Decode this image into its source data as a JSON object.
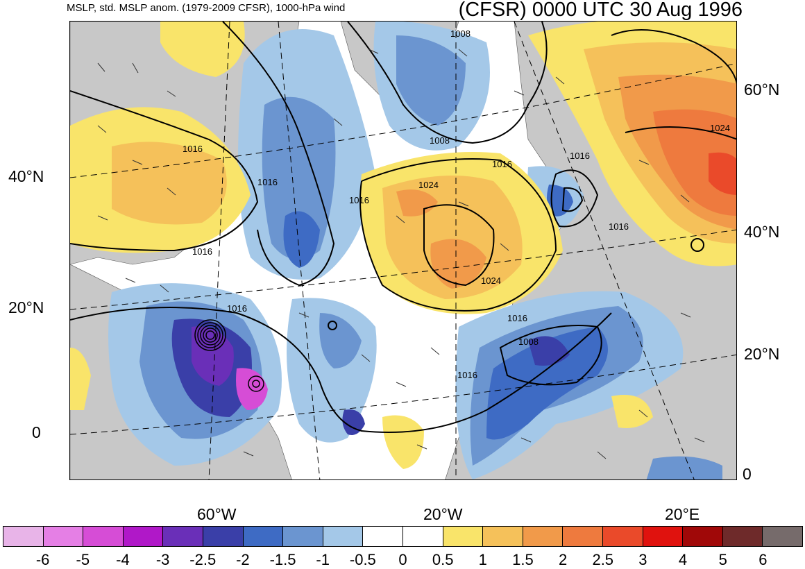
{
  "header": {
    "subtitle": "MSLP, std. MSLP anom. (1979-2009 CFSR), 1000-hPa wind",
    "title": "(CFSR) 0000 UTC 30 Aug 1996"
  },
  "axes": {
    "left_lat_labels": [
      "40°N",
      "20°N",
      "0"
    ],
    "right_lat_labels": [
      "60°N",
      "40°N",
      "20°N",
      "0"
    ],
    "bottom_lon_labels": [
      "60°W",
      "20°W",
      "20°E"
    ]
  },
  "isobars": {
    "labels": [
      "1008",
      "1008",
      "1016",
      "1024",
      "1016",
      "1016",
      "1024",
      "1016",
      "1016",
      "1016",
      "1016",
      "1008",
      "1016",
      "1016",
      "1016",
      "1024",
      "1016"
    ]
  },
  "colorbar": {
    "ticks": [
      "-6",
      "-5",
      "-4",
      "-3",
      "-2.5",
      "-2",
      "-1.5",
      "-1",
      "-0.5",
      "0",
      "0.5",
      "1",
      "1.5",
      "2",
      "2.5",
      "3",
      "4",
      "5",
      "6"
    ],
    "colors": [
      "#e8b4e8",
      "#e57fe5",
      "#d64dd6",
      "#b018c8",
      "#6a2fb8",
      "#3a3fa8",
      "#3e6bc4",
      "#6b95d0",
      "#a4c8e8",
      "#ffffff",
      "#ffffff",
      "#f9e46a",
      "#f5c15a",
      "#f19a4a",
      "#ee7a3e",
      "#ea4a2a",
      "#e0120e",
      "#a00808",
      "#6e2a2a",
      "#766b6b"
    ]
  }
}
